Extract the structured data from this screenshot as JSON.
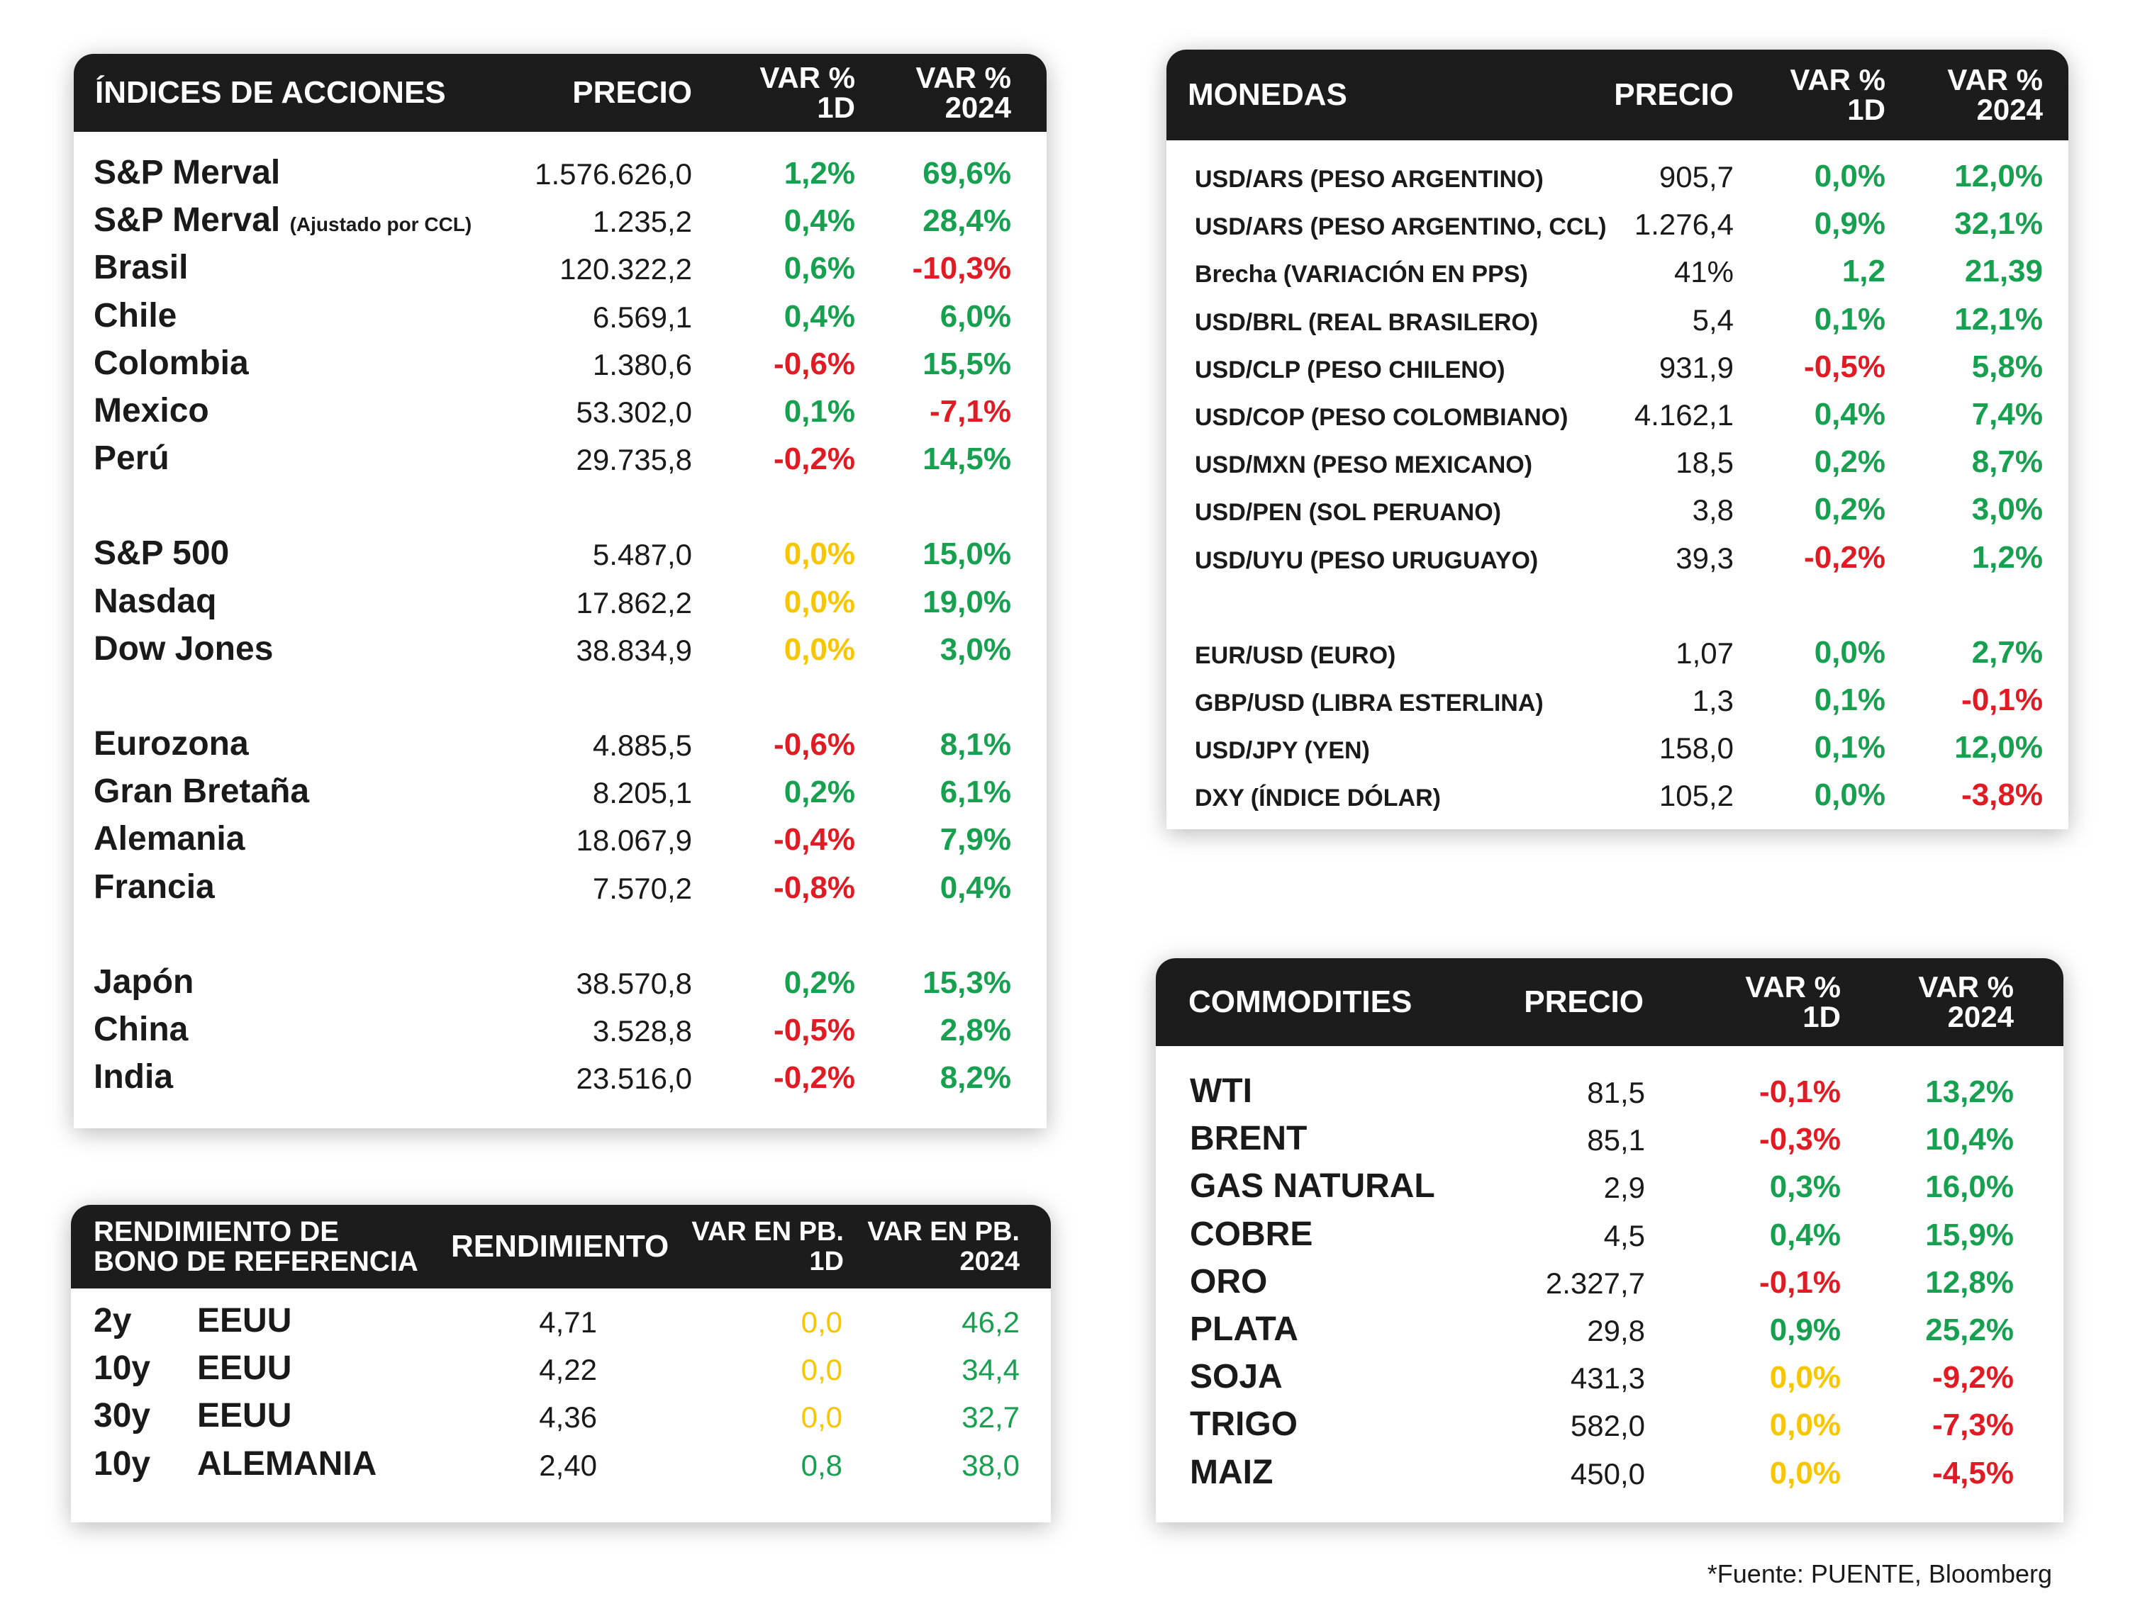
{
  "indices": {
    "header": {
      "name": "ÍNDICES DE ACCIONES",
      "price": "PRECIO",
      "d1": [
        "VAR %",
        "1D"
      ],
      "y": [
        "VAR %",
        "2024"
      ]
    },
    "groups": [
      [
        {
          "name": "S&P Merval",
          "note": "",
          "price": "1.576.626,0",
          "d1": "1,2%",
          "d1c": "green",
          "y": "69,6%",
          "yc": "green"
        },
        {
          "name": "S&P Merval",
          "note": "(Ajustado por CCL)",
          "price": "1.235,2",
          "d1": "0,4%",
          "d1c": "green",
          "y": "28,4%",
          "yc": "green"
        },
        {
          "name": "Brasil",
          "note": "",
          "price": "120.322,2",
          "d1": "0,6%",
          "d1c": "green",
          "y": "-10,3%",
          "yc": "red"
        },
        {
          "name": "Chile",
          "note": "",
          "price": "6.569,1",
          "d1": "0,4%",
          "d1c": "green",
          "y": "6,0%",
          "yc": "green"
        },
        {
          "name": "Colombia",
          "note": "",
          "price": "1.380,6",
          "d1": "-0,6%",
          "d1c": "red",
          "y": "15,5%",
          "yc": "green"
        },
        {
          "name": "Mexico",
          "note": "",
          "price": "53.302,0",
          "d1": "0,1%",
          "d1c": "green",
          "y": "-7,1%",
          "yc": "red"
        },
        {
          "name": "Perú",
          "note": "",
          "price": "29.735,8",
          "d1": "-0,2%",
          "d1c": "red",
          "y": "14,5%",
          "yc": "green"
        }
      ],
      [
        {
          "name": "S&P 500",
          "note": "",
          "price": "5.487,0",
          "d1": "0,0%",
          "d1c": "yellow",
          "y": "15,0%",
          "yc": "green"
        },
        {
          "name": "Nasdaq",
          "note": "",
          "price": "17.862,2",
          "d1": "0,0%",
          "d1c": "yellow",
          "y": "19,0%",
          "yc": "green"
        },
        {
          "name": "Dow Jones",
          "note": "",
          "price": "38.834,9",
          "d1": "0,0%",
          "d1c": "yellow",
          "y": "3,0%",
          "yc": "green"
        }
      ],
      [
        {
          "name": "Eurozona",
          "note": "",
          "price": "4.885,5",
          "d1": "-0,6%",
          "d1c": "red",
          "y": "8,1%",
          "yc": "green"
        },
        {
          "name": "Gran Bretaña",
          "note": "",
          "price": "8.205,1",
          "d1": "0,2%",
          "d1c": "green",
          "y": "6,1%",
          "yc": "green"
        },
        {
          "name": "Alemania",
          "note": "",
          "price": "18.067,9",
          "d1": "-0,4%",
          "d1c": "red",
          "y": "7,9%",
          "yc": "green"
        },
        {
          "name": "Francia",
          "note": "",
          "price": "7.570,2",
          "d1": "-0,8%",
          "d1c": "red",
          "y": "0,4%",
          "yc": "green"
        }
      ],
      [
        {
          "name": "Japón",
          "note": "",
          "price": "38.570,8",
          "d1": "0,2%",
          "d1c": "green",
          "y": "15,3%",
          "yc": "green"
        },
        {
          "name": "China",
          "note": "",
          "price": "3.528,8",
          "d1": "-0,5%",
          "d1c": "red",
          "y": "2,8%",
          "yc": "green"
        },
        {
          "name": "India",
          "note": "",
          "price": "23.516,0",
          "d1": "-0,2%",
          "d1c": "red",
          "y": "8,2%",
          "yc": "green"
        }
      ]
    ]
  },
  "monedas": {
    "header": {
      "name": "MONEDAS",
      "price": "PRECIO",
      "d1": [
        "VAR %",
        "1D"
      ],
      "y": [
        "VAR %",
        "2024"
      ]
    },
    "groups": [
      [
        {
          "name": "USD/ARS (PESO ARGENTINO)",
          "price": "905,7",
          "d1": "0,0%",
          "d1c": "green",
          "y": "12,0%",
          "yc": "green"
        },
        {
          "name": "USD/ARS (PESO ARGENTINO, CCL)",
          "price": "1.276,4",
          "d1": "0,9%",
          "d1c": "green",
          "y": "32,1%",
          "yc": "green"
        },
        {
          "name": "Brecha (VARIACIÓN EN PPS)",
          "price": "41%",
          "d1": "1,2",
          "d1c": "green",
          "y": "21,39",
          "yc": "green"
        },
        {
          "name": "USD/BRL (REAL BRASILERO)",
          "price": "5,4",
          "d1": "0,1%",
          "d1c": "green",
          "y": "12,1%",
          "yc": "green"
        },
        {
          "name": "USD/CLP (PESO CHILENO)",
          "price": "931,9",
          "d1": "-0,5%",
          "d1c": "red",
          "y": "5,8%",
          "yc": "green"
        },
        {
          "name": "USD/COP (PESO COLOMBIANO)",
          "price": "4.162,1",
          "d1": "0,4%",
          "d1c": "green",
          "y": "7,4%",
          "yc": "green"
        },
        {
          "name": "USD/MXN (PESO MEXICANO)",
          "price": "18,5",
          "d1": "0,2%",
          "d1c": "green",
          "y": "8,7%",
          "yc": "green"
        },
        {
          "name": "USD/PEN (SOL PERUANO)",
          "price": "3,8",
          "d1": "0,2%",
          "d1c": "green",
          "y": "3,0%",
          "yc": "green"
        },
        {
          "name": "USD/UYU (PESO URUGUAYO)",
          "price": "39,3",
          "d1": "-0,2%",
          "d1c": "red",
          "y": "1,2%",
          "yc": "green"
        }
      ],
      [
        {
          "name": "EUR/USD (EURO)",
          "price": "1,07",
          "d1": "0,0%",
          "d1c": "green",
          "y": "2,7%",
          "yc": "green"
        },
        {
          "name": "GBP/USD (LIBRA ESTERLINA)",
          "price": "1,3",
          "d1": "0,1%",
          "d1c": "green",
          "y": "-0,1%",
          "yc": "red"
        },
        {
          "name": "USD/JPY (YEN)",
          "price": "158,0",
          "d1": "0,1%",
          "d1c": "green",
          "y": "12,0%",
          "yc": "green"
        },
        {
          "name": "DXY (ÍNDICE DÓLAR)",
          "price": "105,2",
          "d1": "0,0%",
          "d1c": "green",
          "y": "-3,8%",
          "yc": "red"
        }
      ]
    ]
  },
  "bonos": {
    "header": {
      "name": [
        "RENDIMIENTO DE",
        "BONO DE REFERENCIA"
      ],
      "price": "RENDIMIENTO",
      "d1": [
        "VAR EN PB.",
        "1D"
      ],
      "y": [
        "VAR EN PB.",
        "2024"
      ]
    },
    "rows": [
      {
        "term": "2y",
        "country": "EEUU",
        "price": "4,71",
        "d1": "0,0",
        "d1c": "yellow",
        "y": "46,2",
        "yc": "green"
      },
      {
        "term": "10y",
        "country": "EEUU",
        "price": "4,22",
        "d1": "0,0",
        "d1c": "yellow",
        "y": "34,4",
        "yc": "green"
      },
      {
        "term": "30y",
        "country": "EEUU",
        "price": "4,36",
        "d1": "0,0",
        "d1c": "yellow",
        "y": "32,7",
        "yc": "green"
      },
      {
        "term": "10y",
        "country": "ALEMANIA",
        "price": "2,40",
        "d1": "0,8",
        "d1c": "green",
        "y": "38,0",
        "yc": "green"
      }
    ]
  },
  "commodities": {
    "header": {
      "name": "COMMODITIES",
      "price": "PRECIO",
      "d1": [
        "VAR %",
        "1D"
      ],
      "y": [
        "VAR %",
        "2024"
      ]
    },
    "rows": [
      {
        "name": "WTI",
        "price": "81,5",
        "d1": "-0,1%",
        "d1c": "red",
        "y": "13,2%",
        "yc": "green"
      },
      {
        "name": "BRENT",
        "price": "85,1",
        "d1": "-0,3%",
        "d1c": "red",
        "y": "10,4%",
        "yc": "green"
      },
      {
        "name": "GAS NATURAL",
        "price": "2,9",
        "d1": "0,3%",
        "d1c": "green",
        "y": "16,0%",
        "yc": "green"
      },
      {
        "name": "COBRE",
        "price": "4,5",
        "d1": "0,4%",
        "d1c": "green",
        "y": "15,9%",
        "yc": "green"
      },
      {
        "name": "ORO",
        "price": "2.327,7",
        "d1": "-0,1%",
        "d1c": "red",
        "y": "12,8%",
        "yc": "green"
      },
      {
        "name": "PLATA",
        "price": "29,8",
        "d1": "0,9%",
        "d1c": "green",
        "y": "25,2%",
        "yc": "green"
      },
      {
        "name": "SOJA",
        "price": "431,3",
        "d1": "0,0%",
        "d1c": "yellow",
        "y": "-9,2%",
        "yc": "red"
      },
      {
        "name": "TRIGO",
        "price": "582,0",
        "d1": "0,0%",
        "d1c": "yellow",
        "y": "-7,3%",
        "yc": "red"
      },
      {
        "name": "MAIZ",
        "price": "450,0",
        "d1": "0,0%",
        "d1c": "yellow",
        "y": "-4,5%",
        "yc": "red"
      }
    ]
  },
  "footer": "*Fuente: PUENTE, Bloomberg"
}
